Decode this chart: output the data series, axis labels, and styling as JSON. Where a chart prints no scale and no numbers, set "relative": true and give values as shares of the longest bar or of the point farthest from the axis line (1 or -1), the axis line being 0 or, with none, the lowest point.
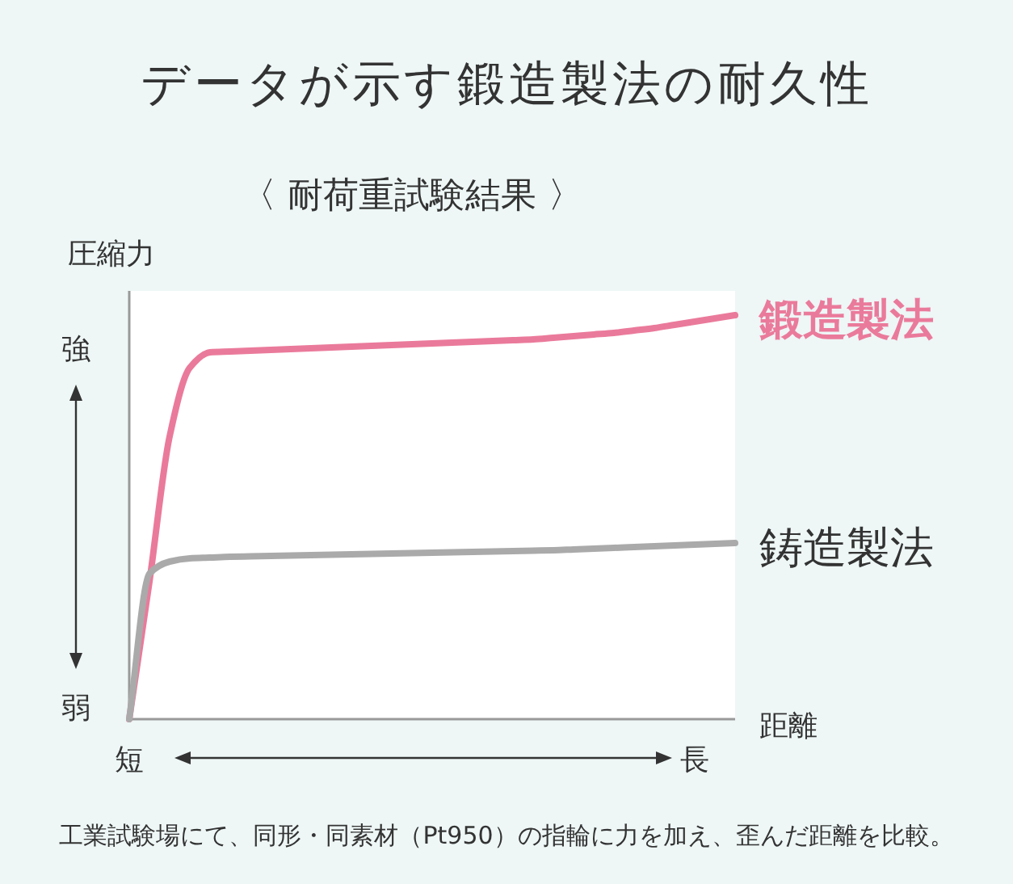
{
  "chart_data": {
    "type": "line",
    "relative": true,
    "title": "データが示す鍛造製法の耐久性",
    "subtitle": "〈 耐荷重試験結果 〉",
    "ylabel": "圧縮力",
    "xlabel": "距離",
    "categories": [
      "短",
      null,
      null,
      null,
      null,
      null,
      null,
      null,
      null,
      null,
      null,
      null,
      null,
      null,
      null,
      null,
      null,
      null,
      null,
      null,
      null,
      null,
      null,
      null,
      null,
      null,
      null,
      null,
      "長",
      null,
      null
    ],
    "series": [
      {
        "name": "鍛造製法",
        "color": "#ea7a9b",
        "values": [
          0,
          0.34,
          0.7,
          0.87,
          0.908,
          0.91,
          0.912,
          0.914,
          0.916,
          0.918,
          0.92,
          0.922,
          0.924,
          0.926,
          0.928,
          0.93,
          0.932,
          0.934,
          0.936,
          0.938,
          0.94,
          0.944,
          0.948,
          0.952,
          0.956,
          0.962,
          0.968,
          0.976,
          0.984,
          0.992,
          1
        ]
      },
      {
        "name": "鋳造製法",
        "color": "#aaaaaa",
        "values": [
          0,
          0.36,
          0.39,
          0.398,
          0.4,
          0.402,
          0.403,
          0.404,
          0.405,
          0.406,
          0.407,
          0.408,
          0.409,
          0.41,
          0.411,
          0.412,
          0.413,
          0.414,
          0.415,
          0.416,
          0.417,
          0.418,
          0.42,
          0.422,
          0.424,
          0.426,
          0.428,
          0.43,
          0.432,
          0.434,
          0.436
        ]
      }
    ],
    "annotations": [
      "強",
      "弱",
      "工業試験場にて、同形・同素材（Pt950）の指輪に力を加え、歪んだ距離を比較。"
    ]
  }
}
